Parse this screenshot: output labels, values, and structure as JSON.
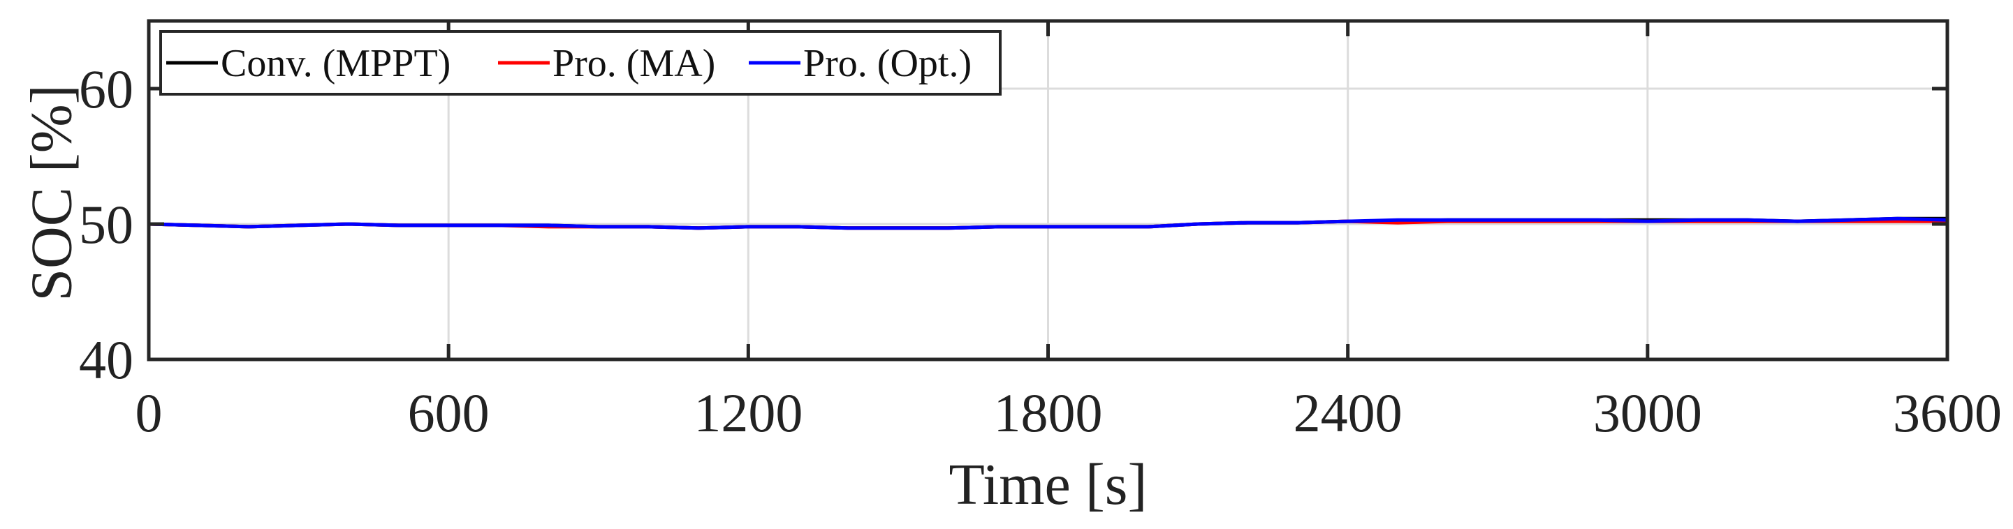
{
  "chart_data": {
    "type": "line",
    "title": "",
    "xlabel": "Time [s]",
    "ylabel": "SOC [%]",
    "xlim": [
      0,
      3600
    ],
    "ylim": [
      40,
      65
    ],
    "xticks": [
      0,
      600,
      1200,
      1800,
      2400,
      3000,
      3600
    ],
    "xtick_labels": [
      "0",
      "600",
      "1200",
      "1800",
      "2400",
      "3000",
      "3600"
    ],
    "yticks": [
      40,
      50,
      60
    ],
    "ytick_labels": [
      "40",
      "50",
      "60"
    ],
    "grid": true,
    "legend": {
      "placement": "top-left",
      "orientation": "horizontal"
    },
    "colors": {
      "Conv. (MPPT)": "#000000",
      "Pro. (MA)": "#ff0000",
      "Pro. (Opt.)": "#0000ff"
    },
    "series": [
      {
        "name": "Conv. (MPPT)",
        "x": [
          0,
          100,
          200,
          300,
          400,
          500,
          600,
          700,
          800,
          900,
          1000,
          1100,
          1200,
          1300,
          1400,
          1500,
          1600,
          1700,
          1800,
          1900,
          2000,
          2100,
          2200,
          2300,
          2400,
          2500,
          2600,
          2700,
          2800,
          2900,
          3000,
          3100,
          3200,
          3300,
          3400,
          3500,
          3600
        ],
        "values": [
          50.0,
          49.9,
          49.8,
          49.9,
          50.0,
          49.9,
          49.9,
          49.9,
          49.9,
          49.8,
          49.8,
          49.7,
          49.8,
          49.8,
          49.7,
          49.7,
          49.7,
          49.8,
          49.8,
          49.8,
          49.8,
          50.0,
          50.1,
          50.1,
          50.2,
          50.2,
          50.3,
          50.3,
          50.3,
          50.3,
          50.3,
          50.3,
          50.3,
          50.2,
          50.3,
          50.4,
          50.4
        ]
      },
      {
        "name": "Pro. (MA)",
        "x": [
          0,
          100,
          200,
          300,
          400,
          500,
          600,
          700,
          800,
          900,
          1000,
          1100,
          1200,
          1300,
          1400,
          1500,
          1600,
          1700,
          1800,
          1900,
          2000,
          2100,
          2200,
          2300,
          2400,
          2500,
          2600,
          2700,
          2800,
          2900,
          3000,
          3100,
          3200,
          3300,
          3400,
          3500,
          3600
        ],
        "values": [
          50.0,
          49.9,
          49.8,
          49.9,
          50.0,
          49.9,
          49.9,
          49.9,
          49.8,
          49.8,
          49.8,
          49.7,
          49.8,
          49.8,
          49.7,
          49.7,
          49.7,
          49.8,
          49.8,
          49.8,
          49.8,
          50.0,
          50.1,
          50.1,
          50.2,
          50.1,
          50.2,
          50.2,
          50.2,
          50.2,
          50.2,
          50.2,
          50.2,
          50.2,
          50.2,
          50.2,
          50.2
        ]
      },
      {
        "name": "Pro. (Opt.)",
        "x": [
          0,
          100,
          200,
          300,
          400,
          500,
          600,
          700,
          800,
          900,
          1000,
          1100,
          1200,
          1300,
          1400,
          1500,
          1600,
          1700,
          1800,
          1900,
          2000,
          2100,
          2200,
          2300,
          2400,
          2500,
          2600,
          2700,
          2800,
          2900,
          3000,
          3100,
          3200,
          3300,
          3400,
          3500,
          3600
        ],
        "values": [
          50.0,
          49.9,
          49.8,
          49.9,
          50.0,
          49.9,
          49.9,
          49.9,
          49.9,
          49.8,
          49.8,
          49.7,
          49.8,
          49.8,
          49.7,
          49.7,
          49.7,
          49.8,
          49.8,
          49.8,
          49.8,
          50.0,
          50.1,
          50.1,
          50.2,
          50.3,
          50.3,
          50.3,
          50.3,
          50.3,
          50.2,
          50.3,
          50.3,
          50.2,
          50.3,
          50.4,
          50.3
        ]
      }
    ]
  }
}
